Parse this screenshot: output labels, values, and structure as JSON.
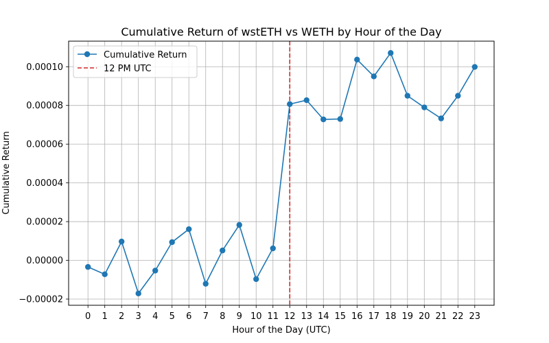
{
  "chart_data": {
    "type": "line",
    "title": "Cumulative Return of wstETH vs WETH by Hour of the Day",
    "xlabel": "Hour of the Day (UTC)",
    "ylabel": "Cumulative Return",
    "x": [
      0,
      1,
      2,
      3,
      4,
      5,
      6,
      7,
      8,
      9,
      10,
      11,
      12,
      13,
      14,
      15,
      16,
      17,
      18,
      19,
      20,
      21,
      22,
      23
    ],
    "series": [
      {
        "name": "Cumulative Return",
        "color": "#1f77b4",
        "values": [
          -3.4e-06,
          -7.2e-06,
          9.7e-06,
          -1.71e-05,
          -5.3e-06,
          9.4e-06,
          1.61e-05,
          -1.21e-05,
          5.1e-06,
          1.83e-05,
          -9.7e-06,
          6.2e-06,
          8.07e-05,
          8.27e-05,
          7.28e-05,
          7.3e-05,
          0.0001037,
          9.5e-05,
          0.0001071,
          8.5e-05,
          7.9e-05,
          7.33e-05,
          8.5e-05,
          9.99e-05
        ]
      }
    ],
    "reference_line": {
      "name": "12 PM UTC",
      "x": 12,
      "color": "#d62728",
      "style": "dashed"
    },
    "xlim": [
      -1.15,
      24.15
    ],
    "ylim": [
      -2.32e-05,
      0.0001132
    ],
    "yticks": [
      -2e-05,
      0.0,
      2e-05,
      4e-05,
      6e-05,
      8e-05,
      0.0001
    ],
    "ytick_labels": [
      "−0.00002",
      "0.00000",
      "0.00002",
      "0.00004",
      "0.00006",
      "0.00008",
      "0.00010"
    ],
    "xticks": [
      0,
      1,
      2,
      3,
      4,
      5,
      6,
      7,
      8,
      9,
      10,
      11,
      12,
      13,
      14,
      15,
      16,
      17,
      18,
      19,
      20,
      21,
      22,
      23
    ],
    "grid": true,
    "legend": "top-left"
  }
}
